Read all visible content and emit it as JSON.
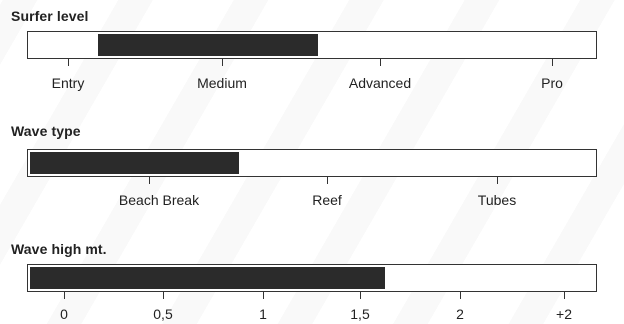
{
  "sections": [
    {
      "title": "Surfer level",
      "range_start": 0.12,
      "range_end": 0.51,
      "labels": [
        "Entry",
        "Medium",
        "Advanced",
        "Pro"
      ]
    },
    {
      "title": "Wave type",
      "range_start": 0.0,
      "range_end": 0.37,
      "labels": [
        "Beach Break",
        "Reef",
        "Tubes"
      ]
    },
    {
      "title": "Wave high mt.",
      "range_start": 0.0,
      "range_end": 0.63,
      "labels": [
        "0",
        "0,5",
        "1",
        "1,5",
        "2",
        "+2"
      ]
    }
  ],
  "colors": {
    "bar_fill": "#2b2b2b",
    "frame": "#333333"
  }
}
